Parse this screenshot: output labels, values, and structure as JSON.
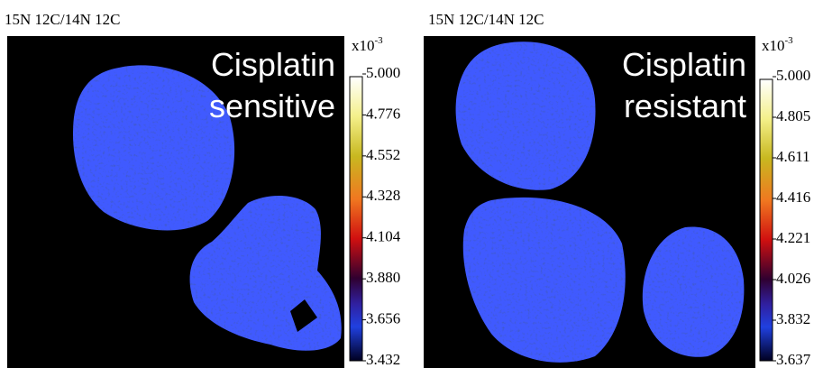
{
  "panels": [
    {
      "label": "15N 12C/14N 12C",
      "title_lines": [
        "Cisplatin",
        "sensitive"
      ],
      "colorbar": {
        "multiplier": "x10",
        "exponent": "-3",
        "ticks": [
          "5.000",
          "4.776",
          "4.552",
          "4.328",
          "4.104",
          "3.880",
          "3.656",
          "3.432"
        ]
      }
    },
    {
      "label": "15N 12C/14N 12C",
      "title_lines": [
        "Cisplatin",
        "resistant"
      ],
      "colorbar": {
        "multiplier": "x10",
        "exponent": "-3",
        "ticks": [
          "5.000",
          "4.805",
          "4.611",
          "4.416",
          "4.221",
          "4.026",
          "3.832",
          "3.637"
        ]
      }
    }
  ]
}
